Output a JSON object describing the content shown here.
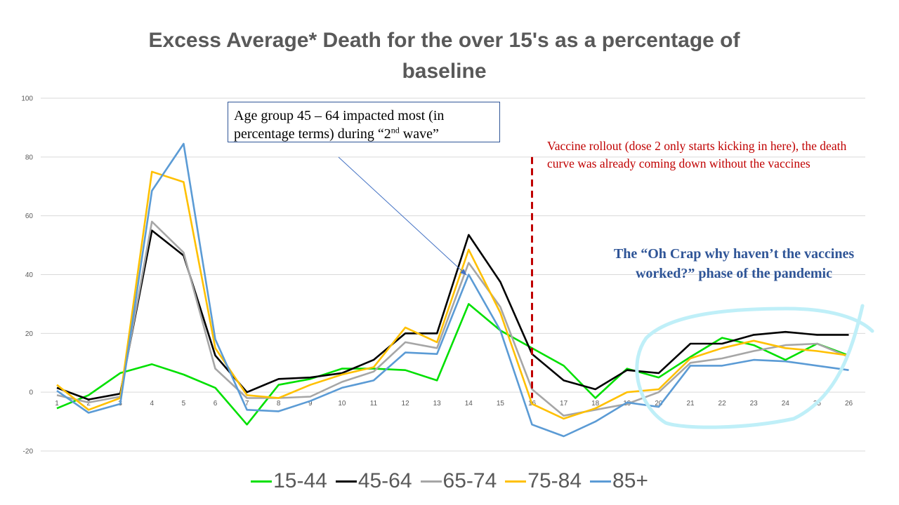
{
  "chart_data": {
    "type": "line",
    "title": "Excess Average* Death for the over 15's as a percentage of baseline",
    "xlabel": "",
    "ylabel": "",
    "ylim": [
      -20,
      100
    ],
    "yticks": [
      -20,
      0,
      20,
      40,
      60,
      80,
      100
    ],
    "grid": true,
    "legend_position": "bottom",
    "x": [
      1,
      2,
      3,
      4,
      5,
      6,
      7,
      8,
      9,
      10,
      11,
      12,
      13,
      14,
      15,
      16,
      17,
      18,
      19,
      20,
      21,
      22,
      23,
      24,
      25,
      26
    ],
    "series": [
      {
        "name": "15-44",
        "color": "#00e000",
        "values": [
          -5.5,
          -1,
          6.5,
          9.5,
          6,
          1.5,
          -11,
          2.5,
          4.5,
          8,
          8,
          7.5,
          4,
          30,
          21,
          15,
          9,
          -2,
          8,
          5,
          12,
          18.5,
          16,
          11,
          16.5,
          12.5
        ]
      },
      {
        "name": "45-64",
        "color": "#000000",
        "values": [
          1.5,
          -2.5,
          -0.5,
          55,
          46.5,
          12.5,
          0,
          4.5,
          5,
          6.5,
          11,
          20,
          20,
          53.5,
          37.5,
          13,
          4,
          1,
          7.5,
          6.5,
          16.5,
          16.5,
          19.5,
          20.5,
          19.5,
          19.5
        ]
      },
      {
        "name": "65-74",
        "color": "#a6a6a6",
        "values": [
          -1,
          -3.5,
          -1.5,
          58,
          47.5,
          8,
          -2,
          -2,
          -1.5,
          3.5,
          7,
          17,
          15,
          44,
          29,
          1,
          -8,
          -6,
          -4,
          0,
          10,
          11.5,
          14,
          16,
          16.5,
          12
        ]
      },
      {
        "name": "75-84",
        "color": "#ffc000",
        "values": [
          2.5,
          -6,
          -2,
          75,
          71.5,
          15,
          -1,
          -2,
          2.5,
          6,
          8.5,
          22,
          17,
          48.5,
          27,
          -4,
          -9,
          -5.5,
          0,
          1,
          11.5,
          15,
          17.5,
          15,
          14,
          12.5
        ]
      },
      {
        "name": "85+",
        "color": "#5b9bd5",
        "values": [
          0.5,
          -7,
          -4,
          68.5,
          84.5,
          18,
          -6,
          -6.5,
          -3,
          1.5,
          4,
          13.5,
          13,
          40,
          21,
          -11,
          -15,
          -10,
          -3.5,
          -5,
          9,
          9,
          11,
          10.5,
          9,
          7.5
        ]
      }
    ],
    "annotations": {
      "box_note": {
        "line1": "Age group 45 – 64 impacted most (in",
        "line2_pre": "percentage terms) during “2",
        "line2_sup": "nd",
        "line2_post": " wave”"
      },
      "vaccine_note": "Vaccine rollout (dose 2 only starts kicking in here), the death curve was already coming down without the vaccines",
      "crap_note": "The “Oh Crap why haven’t the vaccines worked?” phase of the pandemic",
      "vline_x": 16,
      "arrow_target_x": 14,
      "arrow_target_y": 41
    }
  },
  "colors": {
    "grid": "#d9d9d9",
    "arrow": "#4472c4",
    "vline": "#c00000",
    "circle": "#bfeff8"
  }
}
